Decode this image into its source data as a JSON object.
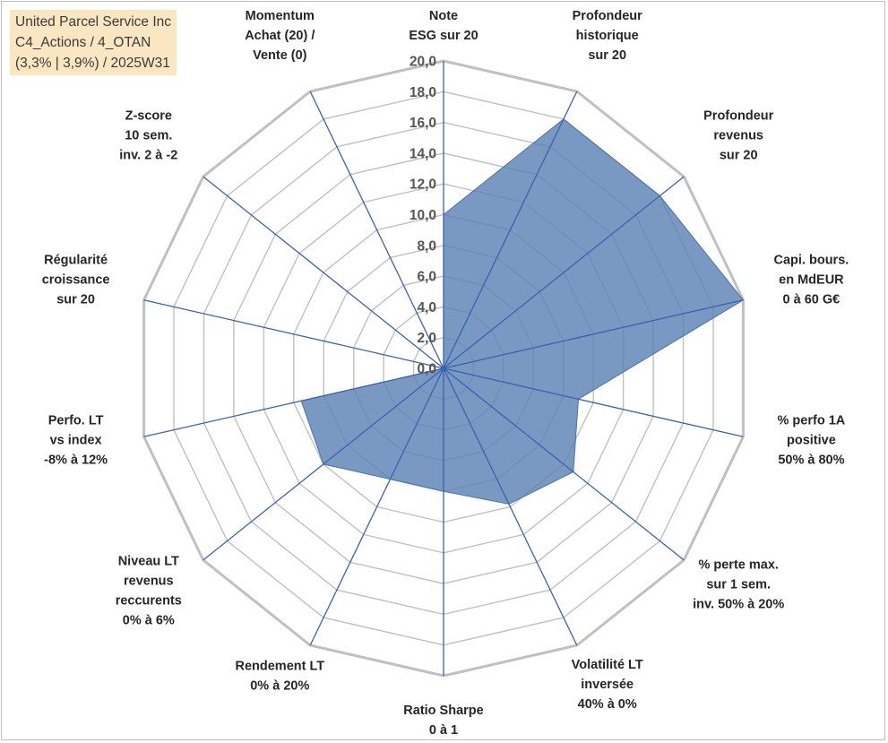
{
  "title_box": {
    "lines": [
      "United Parcel Service Inc",
      "C4_Actions / 4_OTAN",
      "(3,3% | 3,9%) / 2025W31"
    ]
  },
  "chart_data": {
    "type": "radar",
    "rlim": [
      0,
      20
    ],
    "tick_step": 2,
    "tick_labels": [
      "0,0",
      "2,0",
      "4,0",
      "6,0",
      "8,0",
      "10,0",
      "12,0",
      "14,0",
      "16,0",
      "18,0",
      "20,0"
    ],
    "grid": true,
    "colors": {
      "fill": "#5b83b6",
      "grid": "#c0c0c0",
      "spoke": "#3a63ad"
    },
    "axes": [
      {
        "label": [
          "Note",
          "ESG sur 20"
        ],
        "value": 10.0
      },
      {
        "label": [
          "Profondeur",
          "historique",
          "sur 20"
        ],
        "value": 18.0
      },
      {
        "label": [
          "Profondeur",
          "revenus",
          "sur 20"
        ],
        "value": 18.0
      },
      {
        "label": [
          "Capi. bours.",
          "en MdEUR",
          "0 à 60 G€"
        ],
        "value": 20.0
      },
      {
        "label": [
          "% perfo 1A",
          "positive",
          "50% à 80%"
        ],
        "value": 9.0
      },
      {
        "label": [
          "% perte max.",
          "sur 1 sem.",
          "inv. 50% à 20%"
        ],
        "value": 10.8
      },
      {
        "label": [
          "Volatilité LT",
          "inversée",
          "40% à 0%"
        ],
        "value": 9.8
      },
      {
        "label": [
          "Ratio Sharpe",
          "0 à 1"
        ],
        "value": 8.0
      },
      {
        "label": [
          "Rendement LT",
          "0% à 20%"
        ],
        "value": 8.0
      },
      {
        "label": [
          "Niveau LT",
          "revenus",
          "reccurents",
          "0% à 6%"
        ],
        "value": 10.0
      },
      {
        "label": [
          "Perfo. LT",
          "vs index",
          "-8% à 12%"
        ],
        "value": 9.5
      },
      {
        "label": [
          "Régularité",
          "croissance",
          "sur 20"
        ],
        "value": 0.0
      },
      {
        "label": [
          "Z-score",
          "10 sem.",
          "inv. 2 à -2"
        ],
        "value": 0.0
      },
      {
        "label": [
          "Momentum",
          "Achat (20) /",
          "Vente (0)"
        ],
        "value": 0.0
      }
    ]
  }
}
